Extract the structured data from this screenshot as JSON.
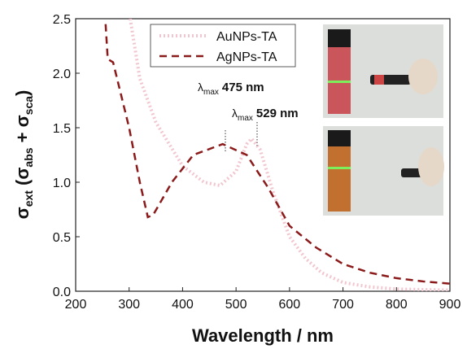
{
  "chart_data": {
    "type": "line",
    "xlabel": "Wavelength / nm",
    "ylabel_parts": [
      "σ",
      "ext",
      " (σ",
      "abs",
      " + σ",
      "sca",
      ")"
    ],
    "xlim": [
      200,
      900
    ],
    "xticks": [
      200,
      300,
      400,
      500,
      600,
      700,
      800,
      900
    ],
    "ylim": [
      0,
      2.5
    ],
    "yticks": [
      {
        "value": 0,
        "label": "0.0"
      },
      0.5,
      {
        "value": 1,
        "label": "1.0"
      },
      1.5,
      {
        "value": 2,
        "label": "2.0"
      },
      2.5
    ],
    "legend": "upper center",
    "series": [
      {
        "name": "AuNPs-TA",
        "color": "#f2c6cf",
        "style": "dotted",
        "x": [
          302,
          320,
          350,
          400,
          440,
          470,
          500,
          520,
          529,
          545,
          570,
          600,
          630,
          660,
          700,
          750,
          800,
          900
        ],
        "values": [
          2.5,
          1.95,
          1.55,
          1.15,
          1.0,
          0.97,
          1.1,
          1.35,
          1.4,
          1.3,
          0.9,
          0.5,
          0.3,
          0.17,
          0.08,
          0.04,
          0.02,
          0.01
        ]
      },
      {
        "name": "AgNPs-TA",
        "color": "#8b1a1a",
        "style": "dashed",
        "x": [
          256,
          260,
          270,
          300,
          320,
          335,
          345,
          380,
          420,
          475,
          520,
          560,
          600,
          650,
          700,
          750,
          800,
          850,
          900
        ],
        "values": [
          2.45,
          2.13,
          2.1,
          1.5,
          1.0,
          0.68,
          0.7,
          1.0,
          1.25,
          1.35,
          1.25,
          0.95,
          0.6,
          0.4,
          0.25,
          0.17,
          0.12,
          0.09,
          0.07
        ]
      }
    ],
    "annotations": [
      {
        "symbol": "λ",
        "sub": "max",
        "text": "475 nm"
      },
      {
        "symbol": "λ",
        "sub": "max",
        "text": "529 nm"
      }
    ]
  }
}
